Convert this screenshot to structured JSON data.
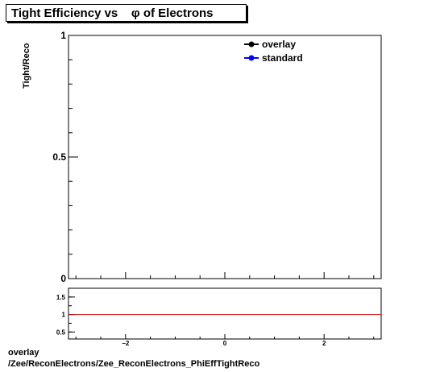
{
  "title": "Tight Efficiency vs    φ of Electrons",
  "footer": {
    "line1": "overlay",
    "line2": "/Zee/ReconElectrons/Zee_ReconElectrons_PhiEffTightReco"
  },
  "chart_data": [
    {
      "type": "line",
      "ylabel": "Tight/Reco",
      "xlabel": "",
      "xlim": [
        -3.15,
        3.15
      ],
      "ylim": [
        0,
        1
      ],
      "y_ticks": [
        {
          "value": 0,
          "label": "0"
        },
        {
          "value": 0.5,
          "label": "0.5"
        },
        {
          "value": 1,
          "label": "1"
        }
      ],
      "series": [
        {
          "name": "overlay",
          "color": "#000000",
          "x": [],
          "y": []
        },
        {
          "name": "standard",
          "color": "#0000ff",
          "x": [],
          "y": []
        }
      ],
      "legend": "top-right",
      "grid": false
    },
    {
      "type": "line",
      "xlim": [
        -3.15,
        3.15
      ],
      "ylim": [
        0.3,
        1.75
      ],
      "x_ticks": [
        {
          "value": -2,
          "label": "−2"
        },
        {
          "value": 0,
          "label": "0"
        },
        {
          "value": 2,
          "label": "2"
        }
      ],
      "y_ticks": [
        {
          "value": 0.5,
          "label": "0.5"
        },
        {
          "value": 1,
          "label": "1"
        },
        {
          "value": 1.5,
          "label": "1.5"
        }
      ],
      "reference_line": {
        "value": 1,
        "color": "#cc0000"
      },
      "grid": false
    }
  ]
}
